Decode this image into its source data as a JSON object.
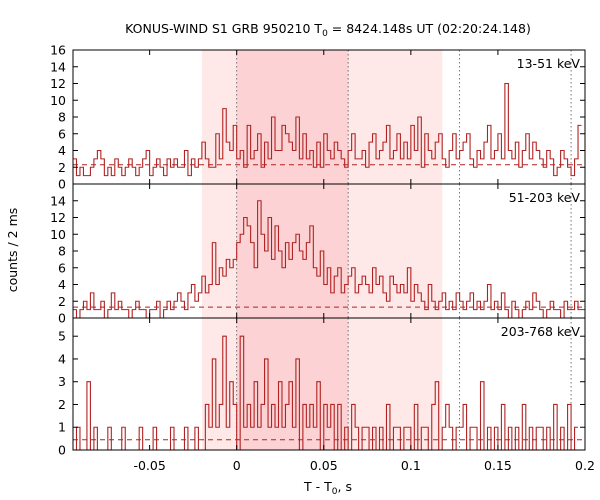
{
  "chart_data": {
    "type": "line",
    "title": {
      "prefix": "KONUS-WIND S1 GRB 950210 T",
      "sub": "0",
      "suffix": " = 8424.148s UT (02:20:24.148)"
    },
    "xlabel": {
      "prefix": "T - T",
      "sub": "0",
      "suffix": ", s"
    },
    "ylabel": "counts / 2 ms",
    "xlim": [
      -0.094,
      0.2
    ],
    "x_ticks": [
      -0.05,
      0,
      0.05,
      0.1,
      0.15,
      0.2
    ],
    "x_tick_labels": [
      "-0.05",
      "0",
      "0.05",
      "0.1",
      "0.15",
      "0.2"
    ],
    "bin_width": 0.002,
    "bin_start": -0.094,
    "vlines": [
      0,
      0.064,
      0.128,
      0.192
    ],
    "shade_outer": [
      -0.02,
      0.118
    ],
    "shade_inner": [
      0,
      0.064
    ],
    "shade_outer_color": "#ffe8e8",
    "shade_inner_color": "#fcd2d4",
    "line_color": "#b22222",
    "panels": [
      {
        "label": "13-51 keV",
        "ylim": [
          0,
          16
        ],
        "yticks": [
          0,
          2,
          4,
          6,
          8,
          10,
          12,
          14,
          16
        ],
        "background": 2.3,
        "values": [
          3,
          1,
          2,
          1,
          1,
          2,
          3,
          4,
          3,
          1,
          2,
          1,
          3,
          2,
          1,
          2,
          3,
          2,
          1,
          2,
          3,
          4,
          1,
          2,
          3,
          2,
          1,
          3,
          2,
          3,
          2,
          2,
          4,
          1,
          3,
          2,
          3,
          5,
          3,
          2,
          2,
          6,
          3,
          9,
          5,
          4,
          7,
          3,
          4,
          2,
          7,
          3,
          4,
          6,
          2,
          5,
          3,
          8,
          4,
          4,
          7,
          6,
          5,
          4,
          8,
          3,
          6,
          3,
          4,
          2,
          5,
          2,
          6,
          4,
          3,
          5,
          4,
          3,
          2,
          4,
          6,
          3,
          3,
          4,
          2,
          5,
          6,
          3,
          4,
          5,
          7,
          3,
          4,
          6,
          3,
          5,
          3,
          7,
          4,
          8,
          2,
          6,
          4,
          3,
          5,
          6,
          3,
          2,
          4,
          6,
          3,
          4,
          5,
          6,
          3,
          2,
          4,
          3,
          5,
          7,
          3,
          4,
          6,
          3,
          12,
          4,
          3,
          5,
          2,
          4,
          6,
          3,
          5,
          4,
          3,
          2,
          4,
          3,
          1,
          2,
          4,
          3,
          2,
          1,
          3,
          7
        ]
      },
      {
        "label": "51-203 keV",
        "ylim": [
          0,
          16
        ],
        "yticks": [
          0,
          2,
          4,
          6,
          8,
          10,
          12,
          14
        ],
        "background": 1.3,
        "values": [
          1,
          0,
          1,
          2,
          1,
          3,
          1,
          1,
          2,
          0,
          1,
          3,
          1,
          2,
          1,
          1,
          0,
          1,
          2,
          1,
          1,
          0,
          1,
          1,
          2,
          0,
          1,
          2,
          1,
          2,
          3,
          2,
          1,
          3,
          4,
          2,
          3,
          5,
          3,
          4,
          9,
          4,
          6,
          5,
          7,
          6,
          7,
          9,
          10,
          12,
          11,
          9,
          6,
          14,
          10,
          8,
          12,
          7,
          11,
          8,
          6,
          9,
          7,
          9,
          10,
          8,
          7,
          9,
          11,
          6,
          5,
          8,
          4,
          6,
          3,
          5,
          6,
          3,
          4,
          5,
          6,
          3,
          4,
          5,
          4,
          3,
          6,
          4,
          5,
          3,
          2,
          5,
          4,
          3,
          4,
          3,
          6,
          2,
          4,
          3,
          2,
          1,
          4,
          2,
          1,
          2,
          3,
          1,
          2,
          1,
          3,
          2,
          1,
          2,
          3,
          1,
          2,
          1,
          2,
          4,
          1,
          2,
          1,
          3,
          1,
          0,
          2,
          1,
          0,
          1,
          2,
          1,
          3,
          2,
          1,
          0,
          1,
          2,
          1,
          1,
          0,
          2,
          1,
          1,
          2,
          1,
          1
        ]
      },
      {
        "label": "203-768 keV",
        "ylim": [
          0,
          5.8
        ],
        "yticks": [
          0,
          1,
          2,
          3,
          4,
          5
        ],
        "background": 0.45,
        "values": [
          0,
          1,
          0,
          0,
          3,
          0,
          1,
          0,
          0,
          0,
          1,
          0,
          0,
          0,
          1,
          0,
          0,
          0,
          0,
          1,
          0,
          0,
          0,
          1,
          0,
          0,
          0,
          0,
          1,
          0,
          0,
          0,
          1,
          0,
          0,
          1,
          0,
          0,
          2,
          1,
          4,
          1,
          2,
          5,
          1,
          3,
          2,
          0,
          5,
          1,
          2,
          1,
          3,
          1,
          2,
          4,
          1,
          2,
          1,
          3,
          1,
          2,
          3,
          1,
          4,
          0,
          2,
          1,
          2,
          1,
          3,
          0,
          2,
          1,
          2,
          0,
          2,
          0,
          1,
          0,
          2,
          1,
          0,
          1,
          1,
          0,
          1,
          0,
          1,
          0,
          2,
          0,
          1,
          1,
          0,
          1,
          1,
          0,
          2,
          0,
          1,
          1,
          0,
          2,
          3,
          0,
          1,
          2,
          1,
          0,
          1,
          1,
          2,
          0,
          1,
          1,
          0,
          3,
          0,
          1,
          0,
          1,
          0,
          2,
          0,
          1,
          0,
          1,
          0,
          2,
          0,
          1,
          0,
          1,
          1,
          0,
          1,
          0,
          2,
          0,
          1,
          0,
          2,
          0,
          1
        ]
      }
    ]
  }
}
